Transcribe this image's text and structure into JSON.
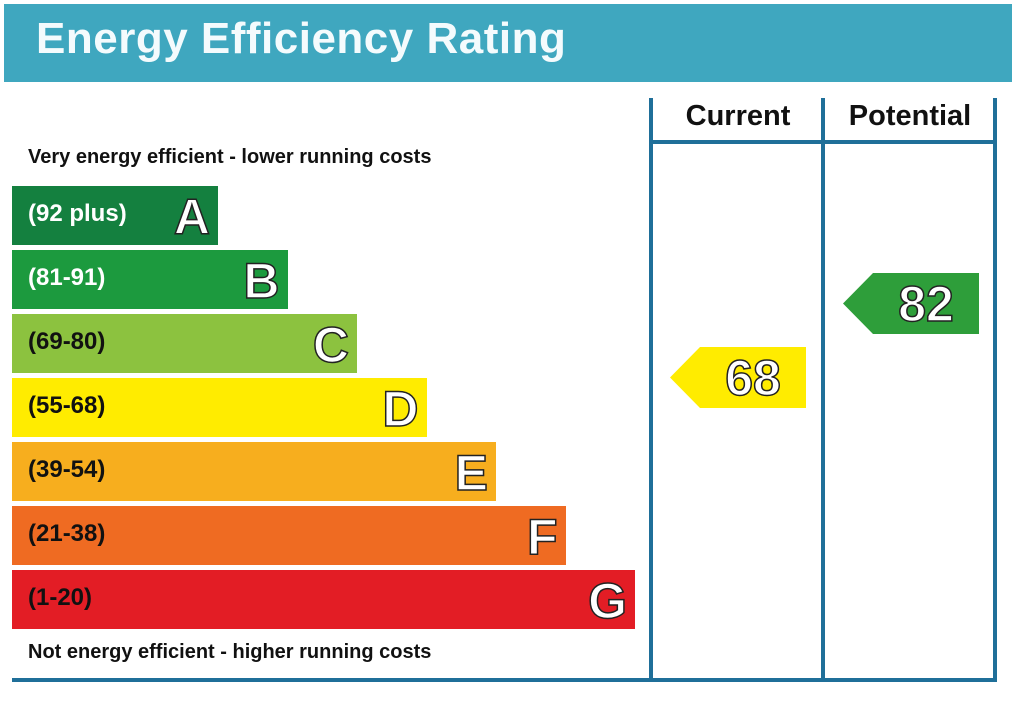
{
  "title": "Energy Efficiency Rating",
  "chart_data": {
    "type": "bar",
    "title": "Energy Efficiency Rating",
    "top_note": "Very energy efficient - lower running costs",
    "bottom_note": "Not energy efficient - higher running costs",
    "columns": [
      "Current",
      "Potential"
    ],
    "bands": [
      {
        "letter": "A",
        "range": "(92 plus)",
        "color": "#14803f",
        "text_color": "#ffffff"
      },
      {
        "letter": "B",
        "range": "(81-91)",
        "color": "#1c9a3e",
        "text_color": "#ffffff"
      },
      {
        "letter": "C",
        "range": "(69-80)",
        "color": "#8cc23f",
        "text_color": "#111111"
      },
      {
        "letter": "D",
        "range": "(55-68)",
        "color": "#ffec00",
        "text_color": "#111111"
      },
      {
        "letter": "E",
        "range": "(39-54)",
        "color": "#f7ae1e",
        "text_color": "#111111"
      },
      {
        "letter": "F",
        "range": "(21-38)",
        "color": "#ef6b22",
        "text_color": "#111111"
      },
      {
        "letter": "G",
        "range": "(1-20)",
        "color": "#e31d25",
        "text_color": "#111111"
      }
    ],
    "current": {
      "value": 68,
      "band": "D",
      "color": "#ffec00"
    },
    "potential": {
      "value": 82,
      "band": "B",
      "color": "#2e9e3a"
    }
  }
}
